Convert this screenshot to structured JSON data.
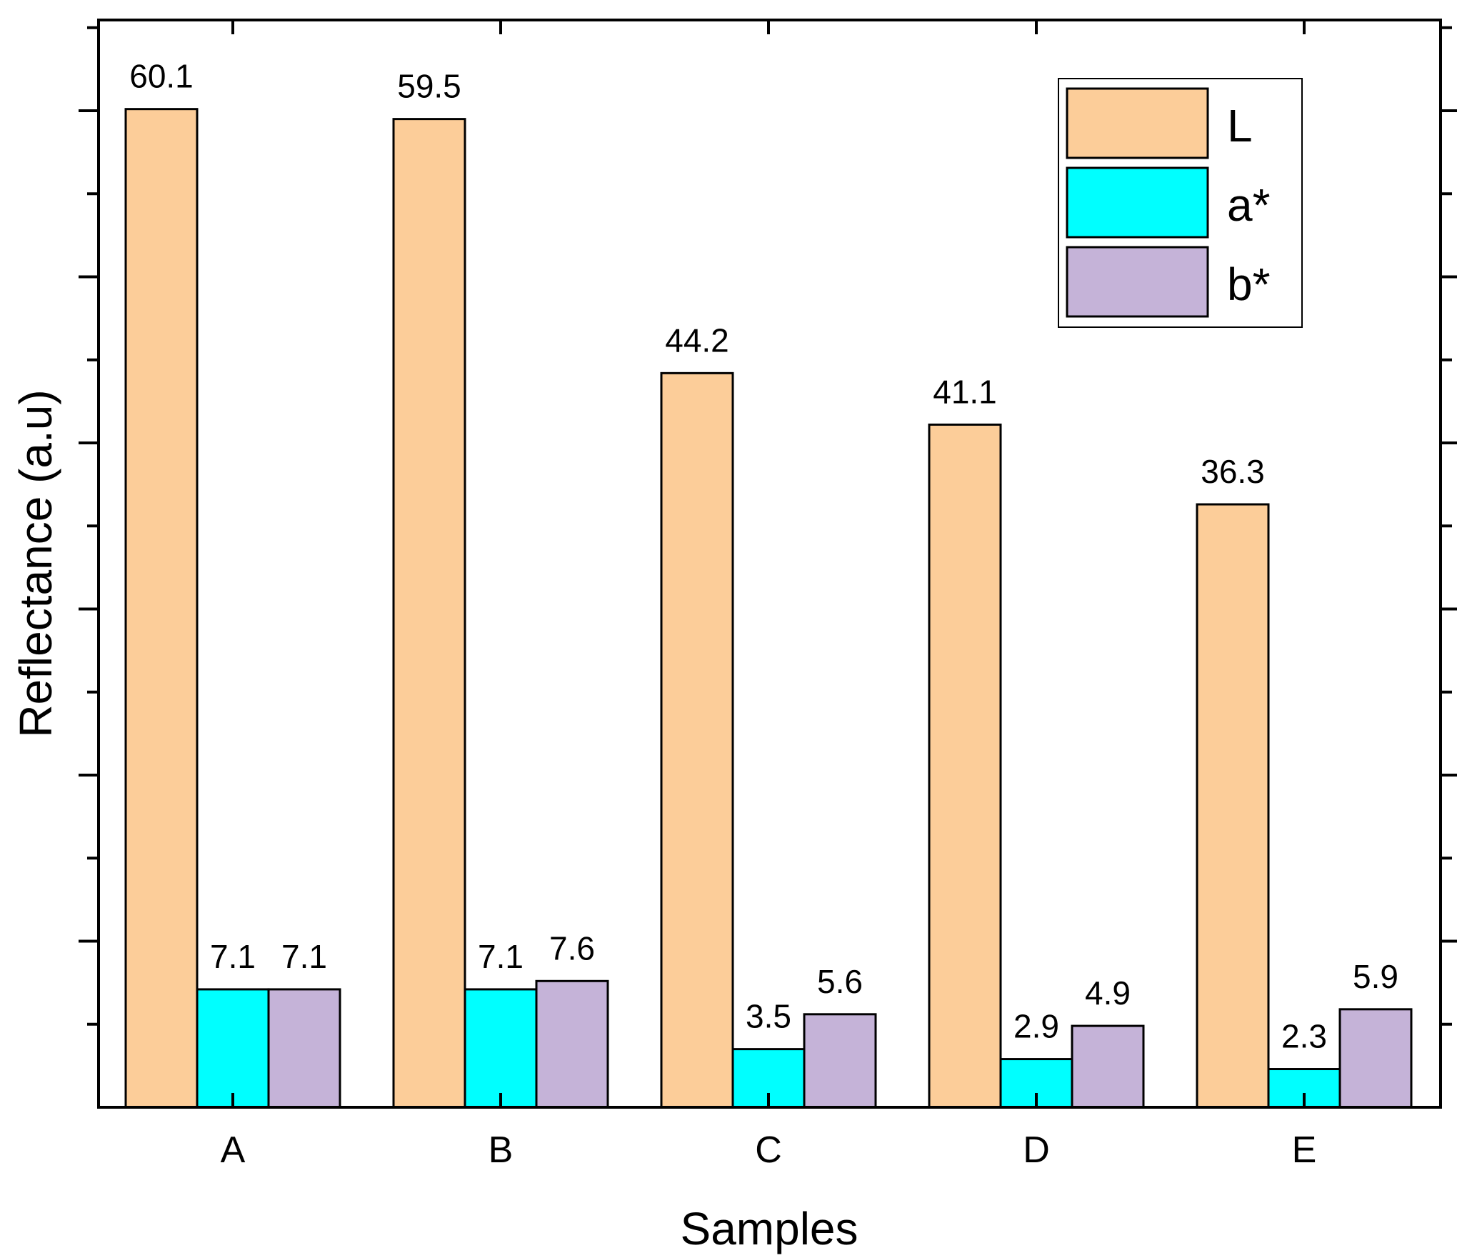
{
  "chart_data": {
    "type": "bar",
    "title": "",
    "xlabel": "Samples",
    "ylabel": "Reflectance (a.u)",
    "categories": [
      "A",
      "B",
      "C",
      "D",
      "E"
    ],
    "series": [
      {
        "name": "L",
        "color": "#FCCD99",
        "values": [
          60.1,
          59.5,
          44.2,
          41.1,
          36.3
        ],
        "labels": [
          "60.1",
          "59.5",
          "44.2",
          "41.1",
          "36.3"
        ]
      },
      {
        "name": "a*",
        "color": "#00FFFF",
        "values": [
          7.1,
          7.1,
          3.5,
          2.9,
          2.3
        ],
        "labels": [
          "7.1",
          "7.1",
          "3.5",
          "2.9",
          "2.3"
        ]
      },
      {
        "name": "b*",
        "color": "#C5B3D8",
        "values": [
          7.1,
          7.6,
          5.6,
          4.9,
          5.9
        ],
        "labels": [
          "7.1",
          "7.6",
          "5.6",
          "4.9",
          "5.9"
        ]
      }
    ],
    "ylim": [
      0,
      65
    ],
    "y_major_step": 10,
    "y_minor_step": 5,
    "y_tick_labels_shown": false,
    "grid": false,
    "legend": "top-right"
  }
}
